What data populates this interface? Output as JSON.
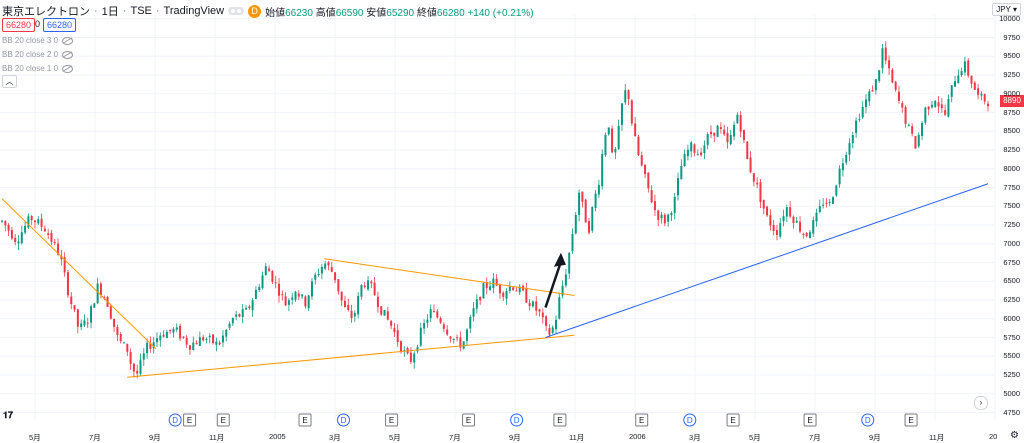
{
  "header": {
    "symbol": "東京エレクトロン",
    "interval": "1日",
    "exchange": "TSE",
    "source": "TradingView",
    "badge": "D",
    "open_label": "始値",
    "open": "66230",
    "high_label": "高値",
    "high": "66590",
    "low_label": "安値",
    "low": "65290",
    "close_label": "終値",
    "close": "66280",
    "change": "+140 (+0.21%)"
  },
  "order": {
    "sell": "66280",
    "spread": "0",
    "buy": "66280"
  },
  "indicators": [
    {
      "label": "BB 20 close 3 0"
    },
    {
      "label": "BB 20 close 2 0"
    },
    {
      "label": "BB 20 close 1 0"
    }
  ],
  "currency": "JPY",
  "last_price": "8890",
  "colors": {
    "up": "#089981",
    "down": "#f23645",
    "orange_line": "#ff9800",
    "blue_line": "#2962ff",
    "grid": "#f0f3fa"
  },
  "icons": {
    "collapse": "chevron-up-icon",
    "settings": "gear-icon",
    "goto_last": "chevron-right-icon",
    "logo": "tradingview-logo"
  },
  "chart_data": {
    "type": "candlestick",
    "y_axis_ticks": [
      "10000",
      "9750",
      "9500",
      "9250",
      "9000",
      "8750",
      "8500",
      "8250",
      "8000",
      "7750",
      "7500",
      "7250",
      "7000",
      "6750",
      "6500",
      "6250",
      "6000",
      "5750",
      "5500",
      "5250",
      "5000",
      "4750"
    ],
    "x_axis_ticks": [
      "5月",
      "7月",
      "9月",
      "11月",
      "2005",
      "3月",
      "5月",
      "7月",
      "9月",
      "11月",
      "2006",
      "3月",
      "5月",
      "7月",
      "9月",
      "11月",
      "20"
    ],
    "ylim": [
      4650,
      10050
    ],
    "price_path": [
      [
        0,
        7300
      ],
      [
        3,
        7050
      ],
      [
        6,
        7350
      ],
      [
        9,
        7200
      ],
      [
        12,
        6850
      ],
      [
        14,
        6300
      ],
      [
        16,
        5850
      ],
      [
        18,
        6000
      ],
      [
        20,
        6450
      ],
      [
        22,
        6200
      ],
      [
        24,
        5750
      ],
      [
        25,
        5650
      ],
      [
        26,
        5600
      ],
      [
        27,
        5350
      ],
      [
        28,
        5250
      ],
      [
        30,
        5600
      ],
      [
        33,
        5800
      ],
      [
        36,
        5850
      ],
      [
        39,
        5650
      ],
      [
        42,
        5750
      ],
      [
        45,
        5650
      ],
      [
        48,
        6000
      ],
      [
        51,
        6100
      ],
      [
        53,
        6400
      ],
      [
        55,
        6700
      ],
      [
        57,
        6450
      ],
      [
        59,
        6200
      ],
      [
        61,
        6400
      ],
      [
        63,
        6200
      ],
      [
        65,
        6550
      ],
      [
        67,
        6750
      ],
      [
        69,
        6600
      ],
      [
        71,
        6150
      ],
      [
        73,
        6000
      ],
      [
        75,
        6500
      ],
      [
        77,
        6400
      ],
      [
        79,
        6100
      ],
      [
        81,
        5900
      ],
      [
        82,
        5750
      ],
      [
        84,
        5500
      ],
      [
        85,
        5450
      ],
      [
        87,
        5800
      ],
      [
        89,
        6100
      ],
      [
        91,
        6000
      ],
      [
        93,
        5800
      ],
      [
        95,
        5650
      ],
      [
        96,
        5700
      ],
      [
        98,
        6100
      ],
      [
        100,
        6400
      ],
      [
        102,
        6500
      ],
      [
        104,
        6350
      ],
      [
        106,
        6450
      ],
      [
        108,
        6350
      ],
      [
        110,
        6200
      ],
      [
        112,
        6050
      ],
      [
        113,
        5850
      ],
      [
        114,
        5800
      ],
      [
        115,
        5950
      ],
      [
        116,
        6300
      ],
      [
        117,
        6550
      ],
      [
        118,
        6900
      ],
      [
        119,
        7300
      ],
      [
        120,
        7700
      ],
      [
        121,
        7400
      ],
      [
        122,
        7200
      ],
      [
        123,
        7550
      ],
      [
        124,
        7800
      ],
      [
        125,
        8300
      ],
      [
        126,
        8700
      ],
      [
        127,
        8050
      ],
      [
        128,
        8400
      ],
      [
        129,
        8900
      ],
      [
        130,
        9100
      ],
      [
        131,
        8600
      ],
      [
        132,
        8250
      ],
      [
        134,
        7800
      ],
      [
        136,
        7400
      ],
      [
        138,
        7300
      ],
      [
        140,
        7600
      ],
      [
        141,
        8000
      ],
      [
        143,
        8300
      ],
      [
        145,
        8200
      ],
      [
        147,
        8450
      ],
      [
        149,
        8550
      ],
      [
        151,
        8300
      ],
      [
        153,
        8750
      ],
      [
        155,
        8100
      ],
      [
        157,
        7750
      ],
      [
        159,
        7350
      ],
      [
        161,
        7150
      ],
      [
        163,
        7500
      ],
      [
        165,
        7300
      ],
      [
        167,
        7100
      ],
      [
        169,
        7300
      ],
      [
        171,
        7600
      ],
      [
        172,
        7500
      ],
      [
        174,
        7950
      ],
      [
        176,
        8350
      ],
      [
        178,
        8700
      ],
      [
        180,
        8950
      ],
      [
        182,
        9200
      ],
      [
        183,
        9600
      ],
      [
        185,
        9150
      ],
      [
        187,
        8800
      ],
      [
        189,
        8450
      ],
      [
        190,
        8300
      ],
      [
        192,
        8800
      ],
      [
        194,
        8950
      ],
      [
        196,
        8700
      ],
      [
        198,
        9200
      ],
      [
        200,
        9400
      ],
      [
        202,
        9100
      ],
      [
        203,
        8950
      ],
      [
        205,
        8900
      ]
    ],
    "trendlines": [
      {
        "color": "orange",
        "from": [
          0,
          7600
        ],
        "to": [
          32,
          5600
        ]
      },
      {
        "color": "orange",
        "from": [
          26,
          5220
        ],
        "to": [
          119,
          5780
        ]
      },
      {
        "color": "orange",
        "from": [
          67,
          6800
        ],
        "to": [
          119,
          6310
        ]
      },
      {
        "color": "blue",
        "from": [
          113,
          5750
        ],
        "to": [
          205,
          7800
        ]
      }
    ],
    "event_markers": [
      {
        "type": "D",
        "index": 36
      },
      {
        "type": "E",
        "index": 39
      },
      {
        "type": "E",
        "index": 46
      },
      {
        "type": "E",
        "index": 63
      },
      {
        "type": "D",
        "index": 71
      },
      {
        "type": "E",
        "index": 81
      },
      {
        "type": "E",
        "index": 97
      },
      {
        "type": "D",
        "index": 107
      },
      {
        "type": "E",
        "index": 116
      },
      {
        "type": "E",
        "index": 133
      },
      {
        "type": "D",
        "index": 143
      },
      {
        "type": "E",
        "index": 152
      },
      {
        "type": "E",
        "index": 168
      },
      {
        "type": "D",
        "index": 180
      },
      {
        "type": "E",
        "index": 189
      }
    ]
  }
}
